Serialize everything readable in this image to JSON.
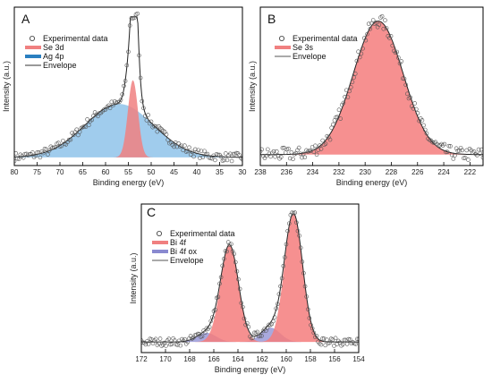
{
  "chart_data": [
    {
      "type": "area",
      "panel_label": "A",
      "xlabel": "Binding energy (eV)",
      "ylabel": "Intensity (a.u.)",
      "xlim": [
        80,
        30
      ],
      "x_reversed": true,
      "xticks": [
        80,
        75,
        70,
        65,
        60,
        55,
        50,
        45,
        40,
        35,
        30
      ],
      "legend_position": "top-left",
      "legend": [
        {
          "label": "Experimental data",
          "kind": "marker"
        },
        {
          "label": "Se 3d",
          "kind": "fill",
          "color": "#f08080"
        },
        {
          "label": "Ag 4p",
          "kind": "fill",
          "color": "#2a7fc0"
        },
        {
          "label": "Envelope",
          "kind": "line",
          "color": "#333333"
        }
      ],
      "series": [
        {
          "name": "Se 3d",
          "shape": "gaussian",
          "center": 54.0,
          "width": 1.1,
          "height": 0.55,
          "color": "#f08080"
        },
        {
          "name": "Ag 4p",
          "shape": "gaussian",
          "center": 57.0,
          "width": 7.5,
          "height": 0.38,
          "color": "#8fc3ea"
        }
      ],
      "envelope_extra": [
        {
          "center": 53.6,
          "width": 0.6,
          "height": 0.55
        }
      ],
      "background": 0.0
    },
    {
      "type": "area",
      "panel_label": "B",
      "xlabel": "Binding energy (eV)",
      "ylabel": "Intensity (a.u.)",
      "xlim": [
        238,
        221
      ],
      "x_reversed": true,
      "xticks": [
        238,
        236,
        234,
        232,
        230,
        228,
        226,
        224,
        222
      ],
      "legend_position": "top-left",
      "legend": [
        {
          "label": "Experimental data",
          "kind": "marker"
        },
        {
          "label": "Se 3s",
          "kind": "fill",
          "color": "#f08080"
        },
        {
          "label": "Envelope",
          "kind": "line",
          "color": "#555555"
        }
      ],
      "series": [
        {
          "name": "Se 3s",
          "shape": "gaussian",
          "center": 229.0,
          "width": 1.9,
          "height": 0.95,
          "color": "#f47c7c"
        }
      ],
      "background": 0.0
    },
    {
      "type": "area",
      "panel_label": "C",
      "xlabel": "Binding energy (eV)",
      "ylabel": "Intensity (a.u.)",
      "xlim": [
        172,
        154
      ],
      "x_reversed": true,
      "xticks": [
        172,
        170,
        168,
        166,
        164,
        162,
        160,
        158,
        156,
        154
      ],
      "legend_position": "top-left",
      "legend": [
        {
          "label": "Experimental data",
          "kind": "marker"
        },
        {
          "label": "Bi 4f",
          "kind": "fill",
          "color": "#f08080"
        },
        {
          "label": "Bi 4f ox",
          "kind": "fill",
          "color": "#8a8ad0"
        },
        {
          "label": "Envelope",
          "kind": "line",
          "color": "#555555"
        }
      ],
      "series": [
        {
          "name": "Bi 4f 5/2",
          "shape": "gaussian",
          "center": 164.7,
          "width": 0.75,
          "height": 0.74,
          "color": "#f47c7c"
        },
        {
          "name": "Bi 4f 7/2",
          "shape": "gaussian",
          "center": 159.4,
          "width": 0.75,
          "height": 0.98,
          "color": "#f47c7c"
        },
        {
          "name": "Bi 4f ox 5/2",
          "shape": "gaussian",
          "center": 166.6,
          "width": 0.8,
          "height": 0.07,
          "color": "#9a9ad8"
        },
        {
          "name": "Bi 4f ox 7/2",
          "shape": "gaussian",
          "center": 161.3,
          "width": 0.8,
          "height": 0.11,
          "color": "#9a9ad8"
        }
      ],
      "background": 0.0
    }
  ]
}
